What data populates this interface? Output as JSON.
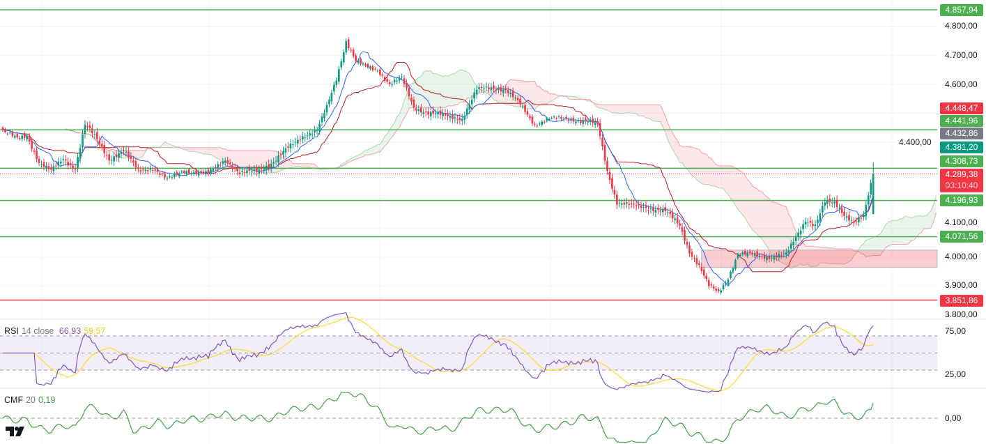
{
  "chart_data": {
    "type": "candlestick",
    "symbol_context": "price chart with Ichimoku cloud, RSI and CMF",
    "price_axis_ticks": [
      "4.800,00",
      "4.700,00",
      "4.600,00",
      "4.400,00",
      "4.100,00",
      "4.000,00",
      "3.900,00",
      "3.800,00"
    ],
    "price_range": [
      3800,
      4800
    ],
    "close_path_keypoints": [
      [
        0,
        4440
      ],
      [
        6,
        4410
      ],
      [
        10,
        4420
      ],
      [
        15,
        4330
      ],
      [
        20,
        4300
      ],
      [
        25,
        4340
      ],
      [
        30,
        4310
      ],
      [
        34,
        4460
      ],
      [
        38,
        4420
      ],
      [
        44,
        4340
      ],
      [
        50,
        4370
      ],
      [
        56,
        4300
      ],
      [
        62,
        4310
      ],
      [
        68,
        4270
      ],
      [
        75,
        4300
      ],
      [
        85,
        4290
      ],
      [
        92,
        4340
      ],
      [
        98,
        4290
      ],
      [
        105,
        4300
      ],
      [
        112,
        4330
      ],
      [
        118,
        4380
      ],
      [
        124,
        4420
      ],
      [
        130,
        4440
      ],
      [
        134,
        4520
      ],
      [
        138,
        4620
      ],
      [
        142,
        4750
      ],
      [
        146,
        4680
      ],
      [
        150,
        4660
      ],
      [
        155,
        4650
      ],
      [
        160,
        4600
      ],
      [
        165,
        4620
      ],
      [
        170,
        4520
      ],
      [
        176,
        4500
      ],
      [
        184,
        4490
      ],
      [
        190,
        4480
      ],
      [
        196,
        4580
      ],
      [
        202,
        4590
      ],
      [
        208,
        4580
      ],
      [
        214,
        4530
      ],
      [
        220,
        4460
      ],
      [
        226,
        4480
      ],
      [
        234,
        4480
      ],
      [
        242,
        4470
      ],
      [
        246,
        4460
      ],
      [
        250,
        4300
      ],
      [
        254,
        4190
      ],
      [
        260,
        4180
      ],
      [
        268,
        4170
      ],
      [
        274,
        4160
      ],
      [
        280,
        4110
      ],
      [
        284,
        4020
      ],
      [
        288,
        3970
      ],
      [
        292,
        3900
      ],
      [
        296,
        3880
      ],
      [
        300,
        3930
      ],
      [
        304,
        4010
      ],
      [
        310,
        4010
      ],
      [
        318,
        4000
      ],
      [
        324,
        4010
      ],
      [
        328,
        4070
      ],
      [
        332,
        4130
      ],
      [
        336,
        4110
      ],
      [
        340,
        4190
      ],
      [
        344,
        4190
      ],
      [
        348,
        4150
      ],
      [
        352,
        4120
      ],
      [
        356,
        4140
      ],
      [
        360,
        4289.38
      ]
    ],
    "horizontal_levels": [
      {
        "value": 4857.94,
        "label": "4.857,94",
        "color": "#4caf50"
      },
      {
        "value": 4441.96,
        "label": "4.441,96",
        "color": "#4caf50"
      },
      {
        "value": 4308.73,
        "label": "4.308,73",
        "color": "#4caf50"
      },
      {
        "value": 4196.93,
        "label": "4.196,93",
        "color": "#4caf50"
      },
      {
        "value": 4071.56,
        "label": "4.071,56",
        "color": "#4caf50"
      },
      {
        "value": 3851.86,
        "label": "3.851,86",
        "color": "#f23645"
      }
    ],
    "indicator_labels": [
      {
        "value": 4448.47,
        "label": "4.448,47",
        "color": "#f23645"
      },
      {
        "value": 4432.86,
        "label": "4.432,86",
        "color": "#787b86"
      },
      {
        "value": 4381.2,
        "label": "4.381,20",
        "color": "#089981"
      }
    ],
    "current_price": {
      "value": 4289.38,
      "label": "4.289,38",
      "countdown": "03:10:40",
      "color": "#f23645"
    },
    "zone": {
      "from": 3965,
      "to": 4025
    },
    "rsi": {
      "title": "RSI",
      "params": "14 close",
      "value": "66,93",
      "ma_value": "59,57",
      "ticks": [
        "75,00",
        "25,00"
      ],
      "upper": 70,
      "lower": 30
    },
    "cmf": {
      "title": "CMF",
      "params": "20",
      "value": "0,19",
      "ticks": [
        "0,00"
      ]
    },
    "colors": {
      "up": "#089981",
      "down": "#f23645",
      "tenkan": "#2962ff",
      "kijun": "#b71c1c",
      "rsi": "#7e57c2",
      "rsi_ma": "#fdd835",
      "cmf": "#43a047"
    }
  }
}
